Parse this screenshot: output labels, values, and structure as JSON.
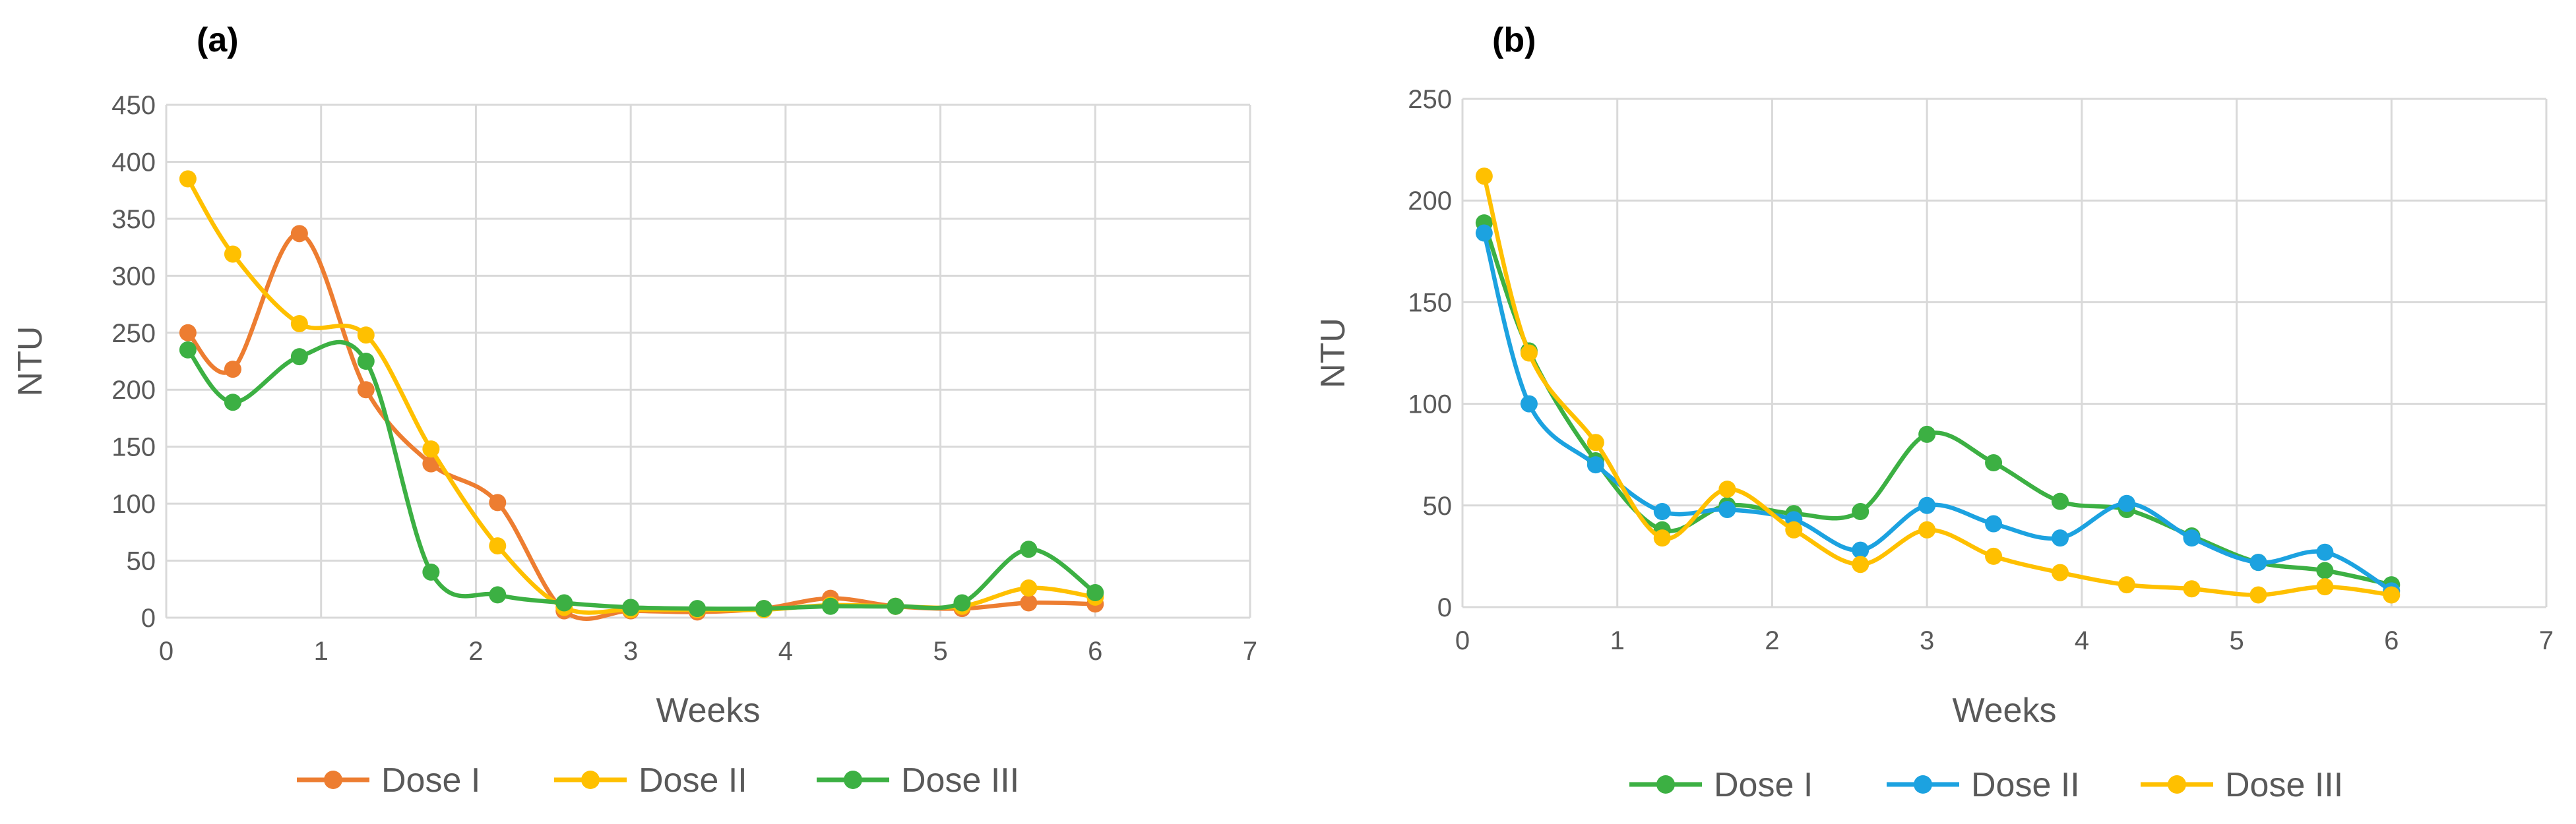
{
  "chart_data": [
    {
      "type": "line",
      "smooth": true,
      "title": "(a)",
      "xlabel": "Weeks",
      "ylabel": "NTU",
      "xlim": [
        0,
        7
      ],
      "ylim": [
        0,
        450
      ],
      "xticks": [
        "0",
        "1",
        "2",
        "3",
        "4",
        "5",
        "6",
        "7"
      ],
      "yticks": [
        "0",
        "50",
        "100",
        "150",
        "200",
        "250",
        "300",
        "350",
        "400",
        "450"
      ],
      "grid": true,
      "legend_position": "bottom",
      "x": [
        0.14,
        0.43,
        0.86,
        1.29,
        1.71,
        2.14,
        2.57,
        3.0,
        3.43,
        3.86,
        4.29,
        4.71,
        5.14,
        5.57,
        6.0
      ],
      "series": [
        {
          "name": "Dose I",
          "color": "#ed7d31",
          "values": [
            250,
            218,
            337,
            200,
            135,
            101,
            6,
            6,
            5,
            8,
            17,
            10,
            8,
            13,
            12
          ]
        },
        {
          "name": "Dose II",
          "color": "#ffc000",
          "values": [
            385,
            319,
            258,
            248,
            148,
            63,
            9,
            7,
            7,
            7,
            11,
            10,
            10,
            26,
            18
          ]
        },
        {
          "name": "Dose III",
          "color": "#3cb043",
          "values": [
            235,
            189,
            229,
            225,
            40,
            20,
            13,
            9,
            8,
            8,
            10,
            10,
            13,
            60,
            22
          ]
        }
      ]
    },
    {
      "type": "line",
      "smooth": true,
      "title": "(b)",
      "xlabel": "Weeks",
      "ylabel": "NTU",
      "xlim": [
        0,
        7
      ],
      "ylim": [
        0,
        250
      ],
      "xticks": [
        "0",
        "1",
        "2",
        "3",
        "4",
        "5",
        "6",
        "7"
      ],
      "yticks": [
        "0",
        "50",
        "100",
        "150",
        "200",
        "250"
      ],
      "grid": true,
      "legend_position": "bottom",
      "x": [
        0.14,
        0.43,
        0.86,
        1.29,
        1.71,
        2.14,
        2.57,
        3.0,
        3.43,
        3.86,
        4.29,
        4.71,
        5.14,
        5.57,
        6.0
      ],
      "series": [
        {
          "name": "Dose I",
          "color": "#3cb043",
          "values": [
            189,
            126,
            72,
            38,
            50,
            46,
            47,
            85,
            71,
            52,
            48,
            35,
            22,
            18,
            11
          ]
        },
        {
          "name": "Dose II",
          "color": "#1ca2e0",
          "values": [
            184,
            100,
            70,
            47,
            48,
            43,
            28,
            50,
            41,
            34,
            51,
            34,
            22,
            27,
            8
          ]
        },
        {
          "name": "Dose III",
          "color": "#ffc000",
          "values": [
            212,
            125,
            81,
            34,
            58,
            38,
            21,
            38,
            25,
            17,
            11,
            9,
            6,
            10,
            6
          ]
        }
      ]
    }
  ]
}
